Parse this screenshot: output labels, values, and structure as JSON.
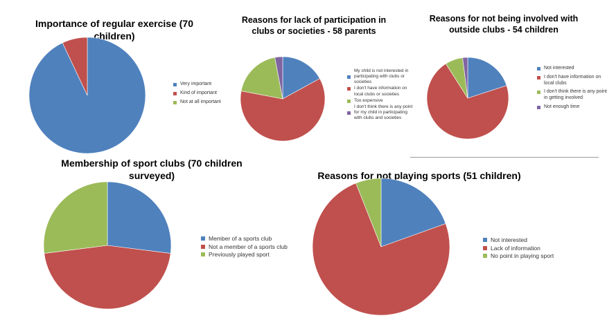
{
  "chart_data": [
    {
      "type": "pie",
      "title": "Importance of regular exercise (70 children)",
      "categories": [
        "Very important",
        "Kind of important",
        "Not at all important"
      ],
      "values": [
        93,
        7,
        0
      ],
      "colors": [
        "#4f81bd",
        "#c0504d",
        "#9bbb59"
      ],
      "legend_labels": [
        [
          "Very important"
        ],
        [
          "Kind of important"
        ],
        [
          "Not at all important"
        ]
      ],
      "legend": "right"
    },
    {
      "type": "pie",
      "title": "Reasons for lack of participation in clubs or societies - 58 parents",
      "categories": [
        "My child is not interested in participating with clubs or societies",
        "I don't have information on local clubs or societies",
        "Too expensive",
        "I don't think there is any point for my child in participating with clubs and societies"
      ],
      "values": [
        17,
        61,
        19,
        3
      ],
      "colors": [
        "#4f81bd",
        "#c0504d",
        "#9bbb59",
        "#8064a2"
      ],
      "legend_labels": [
        [
          "My child is not interested in",
          "participating with clubs or",
          "societies"
        ],
        [
          "I don't have information on",
          "local clubs or societies"
        ],
        [
          "Too expensive"
        ],
        [
          "I don't think there is any point",
          "for my child in participating",
          "with clubs and societies"
        ]
      ],
      "legend_marker_index": [
        1,
        0,
        0,
        1
      ],
      "legend": "right"
    },
    {
      "type": "pie",
      "title": "Reasons for not being involved with outside clubs - 54 children",
      "categories": [
        "Not interested",
        "I don't have information on local clubs",
        "I don't think there is any point in getting involved",
        "Not enough time"
      ],
      "values": [
        20,
        71,
        7,
        2
      ],
      "colors": [
        "#4f81bd",
        "#c0504d",
        "#9bbb59",
        "#8064a2"
      ],
      "legend_labels": [
        [
          "Not interested"
        ],
        [
          "I don't have information on",
          "local clubs"
        ],
        [
          "I don't think there is any point",
          "in getting involved"
        ],
        [
          "Not enough time"
        ]
      ],
      "legend": "right"
    },
    {
      "type": "pie",
      "title": "Membership of sport clubs (70 children surveyed)",
      "categories": [
        "Member of a sports club",
        "Not a member of a sports club",
        "Previously played sport"
      ],
      "values": [
        27,
        46,
        27
      ],
      "colors": [
        "#4f81bd",
        "#c0504d",
        "#9bbb59"
      ],
      "legend_labels": [
        [
          "Member of a sports club"
        ],
        [
          "Not a member of a sports club"
        ],
        [
          "Previously played sport"
        ]
      ],
      "legend": "right"
    },
    {
      "type": "pie",
      "title": "Reasons for not playing sports (51 children)",
      "categories": [
        "Not interested",
        "Lack of information",
        "No point in playing sport"
      ],
      "values": [
        19.5,
        74.5,
        6
      ],
      "colors": [
        "#4f81bd",
        "#c0504d",
        "#9bbb59"
      ],
      "legend_labels": [
        [
          "Not interested"
        ],
        [
          "Lack of information"
        ],
        [
          "No point in playing sport"
        ]
      ],
      "legend": "right"
    }
  ]
}
